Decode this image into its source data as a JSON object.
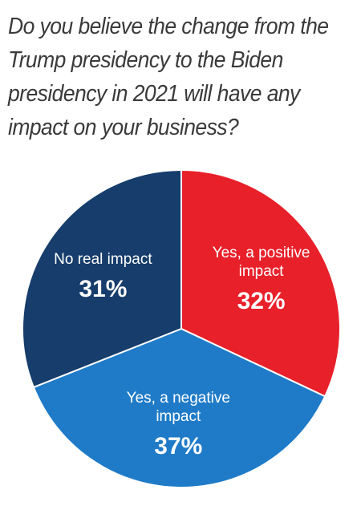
{
  "question": "Do you believe the change from the Trump presidency to the Biden presidency in 2021 will have any impact on your business?",
  "chart_data": {
    "type": "pie",
    "title": "Do you believe the change from the Trump presidency to the Biden presidency in 2021 will have any impact on your business?",
    "unit": "%",
    "slices": [
      {
        "label": [
          "Yes, a positive",
          "impact"
        ],
        "value": 32,
        "display": "32%",
        "color": "#e8202a"
      },
      {
        "label": [
          "Yes, a negative",
          "impact"
        ],
        "value": 37,
        "display": "37%",
        "color": "#1f7bc8"
      },
      {
        "label": [
          "No real impact"
        ],
        "value": 31,
        "display": "31%",
        "color": "#163d6b"
      }
    ],
    "start": "12 o'clock",
    "direction": "clockwise",
    "labels_inside": true,
    "edge_color": "#ffffff"
  }
}
